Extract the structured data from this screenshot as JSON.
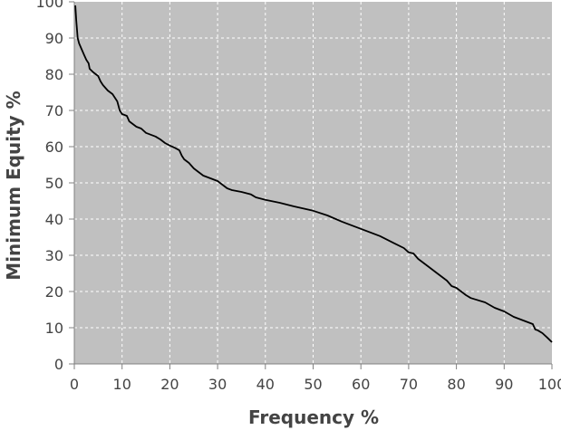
{
  "chart_data": {
    "type": "line",
    "title": "",
    "xlabel": "Frequency %",
    "ylabel": "Minimum Equity %",
    "xlim": [
      0,
      100
    ],
    "ylim": [
      0,
      100
    ],
    "xticks": [
      "0",
      "10",
      "20",
      "30",
      "40",
      "50",
      "60",
      "70",
      "80",
      "90",
      "100"
    ],
    "yticks": [
      "0",
      "10",
      "20",
      "30",
      "40",
      "50",
      "60",
      "70",
      "80",
      "90",
      "100"
    ],
    "grid": true,
    "legend": "none",
    "colors": {
      "plot_background": "#c0c0c0",
      "grid": "#ffffff",
      "line": "#000000",
      "axis": "#808080",
      "text": "#444444"
    },
    "series": [
      {
        "x": [
          0.2,
          0.4,
          0.7,
          1.0,
          1.5,
          2.0,
          2.5,
          3.0,
          3.2,
          4.0,
          5.0,
          5.5,
          6.0,
          7.0,
          8.0,
          9.0,
          9.5,
          10.0,
          11.0,
          11.5,
          12.0,
          13.0,
          14.0,
          15.0,
          17.0,
          18.0,
          19.0,
          20.0,
          21.0,
          22.0,
          22.5,
          23.0,
          24.0,
          25.0,
          26.0,
          27.0,
          28.0,
          30.0,
          32.0,
          33.0,
          35.0,
          37.0,
          38.0,
          40.0,
          43.0,
          46.0,
          50.0,
          53.0,
          56.0,
          60.0,
          64.0,
          67.0,
          69.0,
          70.0,
          71.0,
          72.0,
          74.0,
          76.0,
          78.0,
          79.0,
          80.0,
          82.0,
          83.0,
          84.0,
          86.0,
          88.0,
          89.0,
          90.0,
          92.0,
          93.0,
          96.0,
          96.5,
          97.0,
          98.0,
          99.0,
          100.0
        ],
        "y": [
          99,
          95,
          90,
          88.5,
          87,
          85.5,
          84,
          83,
          81.5,
          80.5,
          79.5,
          78,
          77,
          75.5,
          74.5,
          72.5,
          70,
          69,
          68.5,
          67,
          66.5,
          65.5,
          65,
          63.8,
          62.8,
          62,
          61,
          60.3,
          59.7,
          59,
          57.5,
          56.5,
          55.5,
          54,
          53,
          52,
          51.5,
          50.5,
          48.5,
          48,
          47.5,
          46.8,
          46,
          45.3,
          44.5,
          43.5,
          42.3,
          41,
          39.3,
          37.3,
          35.3,
          33.3,
          32,
          30.8,
          30.5,
          29,
          27,
          25,
          23,
          21.5,
          21,
          19,
          18.2,
          17.8,
          17,
          15.5,
          15,
          14.5,
          13,
          12.5,
          11,
          9.5,
          9.3,
          8.5,
          7.3,
          6
        ]
      }
    ]
  }
}
